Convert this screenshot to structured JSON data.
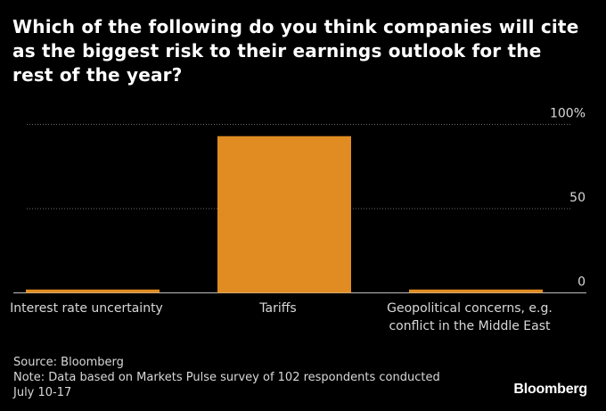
{
  "chart_data": {
    "type": "bar",
    "title": "Which of the following do you think companies will cite as the biggest risk to their earnings outlook for the rest of the year?",
    "categories": [
      [
        "Interest rate uncertainty"
      ],
      [
        "Tariffs"
      ],
      [
        "Geopolitical concerns, e.g.",
        "conflict in the Middle East"
      ]
    ],
    "values": [
      2,
      93,
      2
    ],
    "ylim": [
      0,
      100
    ],
    "yticks": [
      0,
      50,
      100
    ],
    "ytick_labels": [
      "0",
      "50",
      "100%"
    ],
    "grid": true,
    "xlabel": "",
    "ylabel": ""
  },
  "colors": {
    "bar": "#e08c22",
    "grid": "#6b6b6b",
    "axis": "#bfbfbf",
    "text": "#ffffff",
    "muted": "#d8d8d8"
  },
  "footer": {
    "source": "Source: Bloomberg",
    "note_line1": "Note: Data based on Markets Pulse survey of 102 respondents conducted",
    "note_line2": "July 10-17"
  },
  "brand": "Bloomberg"
}
